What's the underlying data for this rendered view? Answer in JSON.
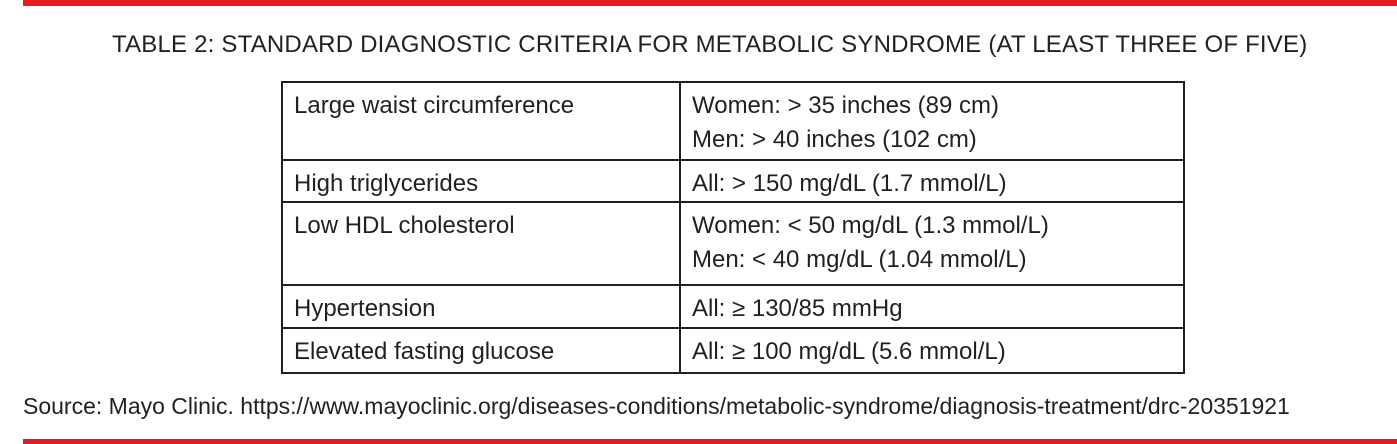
{
  "title": "TABLE 2: STANDARD DIAGNOSTIC CRITERIA FOR METABOLIC SYNDROME (AT LEAST THREE OF FIVE)",
  "rows": [
    {
      "criterion": "Large waist circumference",
      "values": [
        "Women: > 35 inches (89 cm)",
        "Men: > 40 inches (102 cm)"
      ]
    },
    {
      "criterion": "High triglycerides",
      "values": [
        "All: > 150 mg/dL (1.7 mmol/L)"
      ]
    },
    {
      "criterion": "Low HDL cholesterol",
      "values": [
        "Women: < 50 mg/dL (1.3 mmol/L)",
        "Men: < 40 mg/dL (1.04 mmol/L)"
      ]
    },
    {
      "criterion": "Hypertension",
      "values": [
        "All: ≥ 130/85 mmHg"
      ]
    },
    {
      "criterion": "Elevated fasting glucose",
      "values": [
        "All: ≥ 100 mg/dL (5.6 mmol/L)"
      ]
    }
  ],
  "source": "Source: Mayo Clinic. https://www.mayoclinic.org/diseases-conditions/metabolic-syndrome/diagnosis-treatment/drc-20351921",
  "colors": {
    "accent_rule": "#e31b23",
    "text": "#231f20"
  }
}
